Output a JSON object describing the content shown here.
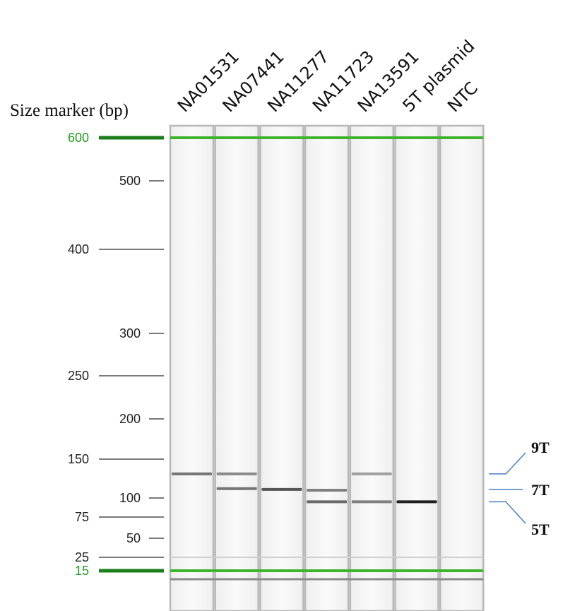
{
  "title": "Size marker (bp)",
  "colors": {
    "marker_green": "#3cb52b",
    "marker_dark_green": "#1b7d1b",
    "lane_border": "#b8b8b8",
    "lane_bg": "#f6f6f6",
    "callout_blue": "#4a7fc1"
  },
  "chart_data": {
    "type": "gel",
    "title": "Size marker (bp)",
    "lanes": [
      "NA01531",
      "NA07441",
      "NA11277",
      "NA11723",
      "NA13591",
      "5T plasmid",
      "NTC"
    ],
    "size_markers": [
      {
        "bp": 600,
        "label": "600",
        "highlight": true
      },
      {
        "bp": 500,
        "label": "500",
        "highlight": false
      },
      {
        "bp": 400,
        "label": "400",
        "highlight": false
      },
      {
        "bp": 300,
        "label": "300",
        "highlight": false
      },
      {
        "bp": 250,
        "label": "250",
        "highlight": false
      },
      {
        "bp": 200,
        "label": "200",
        "highlight": false
      },
      {
        "bp": 150,
        "label": "150",
        "highlight": false
      },
      {
        "bp": 100,
        "label": "100",
        "highlight": false
      },
      {
        "bp": 75,
        "label": "75",
        "highlight": false
      },
      {
        "bp": 50,
        "label": "50",
        "highlight": false
      },
      {
        "bp": 25,
        "label": "25",
        "highlight": false
      },
      {
        "bp": 15,
        "label": "15",
        "highlight": true
      }
    ],
    "bands": [
      {
        "lane": 0,
        "bp": 131,
        "intensity": 0.55
      },
      {
        "lane": 1,
        "bp": 131,
        "intensity": 0.45
      },
      {
        "lane": 1,
        "bp": 112,
        "intensity": 0.55
      },
      {
        "lane": 2,
        "bp": 111,
        "intensity": 0.7
      },
      {
        "lane": 3,
        "bp": 110,
        "intensity": 0.5
      },
      {
        "lane": 3,
        "bp": 95,
        "intensity": 0.6
      },
      {
        "lane": 4,
        "bp": 131,
        "intensity": 0.35
      },
      {
        "lane": 4,
        "bp": 95,
        "intensity": 0.5
      },
      {
        "lane": 5,
        "bp": 95,
        "intensity": 0.95
      }
    ],
    "alleles": [
      {
        "label": "9T",
        "bp": 131
      },
      {
        "label": "7T",
        "bp": 111
      },
      {
        "label": "5T",
        "bp": 95
      }
    ]
  }
}
